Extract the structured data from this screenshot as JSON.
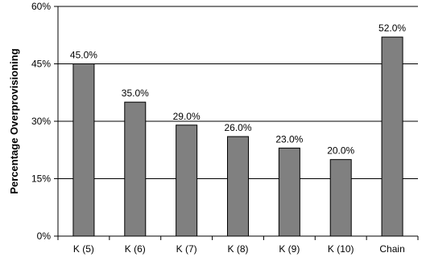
{
  "chart_data": {
    "type": "bar",
    "categories": [
      "K (5)",
      "K (6)",
      "K (7)",
      "K (8)",
      "K (9)",
      "K (10)",
      "Chain"
    ],
    "values": [
      45.0,
      35.0,
      29.0,
      26.0,
      23.0,
      20.0,
      52.0
    ],
    "data_labels": [
      "45.0%",
      "35.0%",
      "29.0%",
      "26.0%",
      "23.0%",
      "20.0%",
      "52.0%"
    ],
    "title": "",
    "xlabel": "",
    "ylabel": "Percentage Overprovisioning",
    "ylim": [
      0,
      60
    ],
    "yticks": [
      0,
      15,
      30,
      45,
      60
    ],
    "ytick_labels": [
      "0%",
      "15%",
      "30%",
      "45%",
      "60%"
    ],
    "grid": true,
    "legend": "none",
    "colors": {
      "bar_fill": "#808080",
      "bar_stroke": "#000000",
      "grid": "#000000",
      "axis": "#000000"
    }
  }
}
